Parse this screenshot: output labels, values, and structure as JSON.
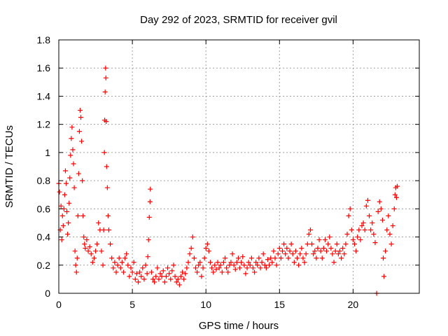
{
  "chart_data": {
    "type": "scatter",
    "title": "Day 292 of 2023, SRMTID for receiver gvil",
    "xlabel": "GPS time / hours",
    "ylabel": "SRMTID / TECUs",
    "xlim": [
      0,
      24.5
    ],
    "ylim": [
      0,
      1.8
    ],
    "xticks": [
      0,
      5,
      10,
      15,
      20
    ],
    "xtick_labels": [
      "0",
      "5",
      "10",
      "15",
      "20"
    ],
    "yticks": [
      0,
      0.2,
      0.4,
      0.6,
      0.8,
      1,
      1.2,
      1.4,
      1.6,
      1.8
    ],
    "ytick_labels": [
      "0",
      "0.2",
      "0.4",
      "0.6",
      "0.8",
      "1",
      "1.2",
      "1.4",
      "1.6",
      "1.8"
    ],
    "grid": true,
    "marker": "+",
    "color": "#ff0000",
    "series": [
      {
        "name": "SRMTID",
        "points": [
          [
            0.0,
            0.78
          ],
          [
            0.05,
            0.72
          ],
          [
            0.1,
            0.45
          ],
          [
            0.15,
            0.62
          ],
          [
            0.2,
            0.38
          ],
          [
            0.25,
            0.55
          ],
          [
            0.3,
            0.48
          ],
          [
            0.35,
            0.6
          ],
          [
            0.4,
            0.7
          ],
          [
            0.45,
            0.87
          ],
          [
            0.5,
            0.78
          ],
          [
            0.55,
            0.58
          ],
          [
            0.6,
            0.42
          ],
          [
            0.65,
            0.5
          ],
          [
            0.7,
            0.64
          ],
          [
            0.75,
            0.82
          ],
          [
            0.8,
            0.98
          ],
          [
            0.85,
            1.1
          ],
          [
            0.9,
            1.18
          ],
          [
            0.95,
            1.02
          ],
          [
            1.0,
            0.92
          ],
          [
            1.05,
            0.75
          ],
          [
            1.1,
            0.3
          ],
          [
            1.15,
            0.2
          ],
          [
            1.2,
            0.15
          ],
          [
            1.25,
            0.25
          ],
          [
            1.3,
            0.55
          ],
          [
            1.35,
            0.85
          ],
          [
            1.4,
            1.15
          ],
          [
            1.45,
            1.3
          ],
          [
            1.5,
            1.25
          ],
          [
            1.55,
            1.08
          ],
          [
            1.6,
            0.8
          ],
          [
            1.65,
            0.55
          ],
          [
            1.7,
            0.4
          ],
          [
            1.75,
            0.35
          ],
          [
            1.8,
            0.32
          ],
          [
            1.9,
            0.38
          ],
          [
            2.0,
            0.3
          ],
          [
            2.1,
            0.33
          ],
          [
            2.2,
            0.28
          ],
          [
            2.3,
            0.22
          ],
          [
            2.4,
            0.25
          ],
          [
            2.5,
            0.3
          ],
          [
            2.6,
            0.35
          ],
          [
            2.7,
            0.5
          ],
          [
            2.8,
            0.45
          ],
          [
            2.9,
            0.3
          ],
          [
            3.0,
            0.2
          ],
          [
            3.05,
            0.45
          ],
          [
            3.1,
            1.0
          ],
          [
            3.12,
            1.23
          ],
          [
            3.15,
            1.43
          ],
          [
            3.18,
            1.6
          ],
          [
            3.2,
            1.53
          ],
          [
            3.22,
            1.22
          ],
          [
            3.25,
            0.9
          ],
          [
            3.3,
            0.75
          ],
          [
            3.35,
            0.55
          ],
          [
            3.4,
            0.45
          ],
          [
            3.5,
            0.35
          ],
          [
            3.6,
            0.25
          ],
          [
            3.7,
            0.18
          ],
          [
            3.8,
            0.22
          ],
          [
            3.9,
            0.15
          ],
          [
            4.0,
            0.2
          ],
          [
            4.1,
            0.25
          ],
          [
            4.2,
            0.18
          ],
          [
            4.3,
            0.22
          ],
          [
            4.4,
            0.15
          ],
          [
            4.5,
            0.25
          ],
          [
            4.6,
            0.28
          ],
          [
            4.7,
            0.2
          ],
          [
            4.8,
            0.12
          ],
          [
            4.9,
            0.18
          ],
          [
            5.0,
            0.15
          ],
          [
            5.1,
            0.22
          ],
          [
            5.2,
            0.1
          ],
          [
            5.3,
            0.14
          ],
          [
            5.4,
            0.08
          ],
          [
            5.5,
            0.15
          ],
          [
            5.6,
            0.12
          ],
          [
            5.7,
            0.18
          ],
          [
            5.8,
            0.1
          ],
          [
            5.9,
            0.2
          ],
          [
            6.0,
            0.14
          ],
          [
            6.05,
            0.26
          ],
          [
            6.1,
            0.38
          ],
          [
            6.15,
            0.54
          ],
          [
            6.2,
            0.65
          ],
          [
            6.22,
            0.74
          ],
          [
            6.3,
            0.15
          ],
          [
            6.4,
            0.1
          ],
          [
            6.5,
            0.08
          ],
          [
            6.6,
            0.12
          ],
          [
            6.7,
            0.18
          ],
          [
            6.8,
            0.1
          ],
          [
            6.9,
            0.14
          ],
          [
            7.0,
            0.12
          ],
          [
            7.1,
            0.16
          ],
          [
            7.2,
            0.08
          ],
          [
            7.3,
            0.12
          ],
          [
            7.4,
            0.18
          ],
          [
            7.5,
            0.14
          ],
          [
            7.6,
            0.1
          ],
          [
            7.7,
            0.16
          ],
          [
            7.8,
            0.2
          ],
          [
            7.9,
            0.12
          ],
          [
            8.0,
            0.08
          ],
          [
            8.1,
            0.1
          ],
          [
            8.2,
            0.06
          ],
          [
            8.3,
            0.12
          ],
          [
            8.4,
            0.15
          ],
          [
            8.5,
            0.1
          ],
          [
            8.6,
            0.14
          ],
          [
            8.7,
            0.18
          ],
          [
            8.8,
            0.22
          ],
          [
            8.9,
            0.28
          ],
          [
            9.0,
            0.32
          ],
          [
            9.1,
            0.4
          ],
          [
            9.2,
            0.25
          ],
          [
            9.3,
            0.18
          ],
          [
            9.4,
            0.15
          ],
          [
            9.5,
            0.2
          ],
          [
            9.6,
            0.22
          ],
          [
            9.7,
            0.12
          ],
          [
            9.8,
            0.18
          ],
          [
            9.9,
            0.25
          ],
          [
            10.0,
            0.32
          ],
          [
            10.1,
            0.35
          ],
          [
            10.2,
            0.3
          ],
          [
            10.3,
            0.22
          ],
          [
            10.4,
            0.18
          ],
          [
            10.5,
            0.15
          ],
          [
            10.6,
            0.2
          ],
          [
            10.7,
            0.17
          ],
          [
            10.8,
            0.22
          ],
          [
            10.9,
            0.18
          ],
          [
            11.0,
            0.2
          ],
          [
            11.1,
            0.15
          ],
          [
            11.2,
            0.22
          ],
          [
            11.3,
            0.25
          ],
          [
            11.4,
            0.18
          ],
          [
            11.5,
            0.15
          ],
          [
            11.6,
            0.2
          ],
          [
            11.7,
            0.22
          ],
          [
            11.8,
            0.28
          ],
          [
            11.9,
            0.2
          ],
          [
            12.0,
            0.17
          ],
          [
            12.1,
            0.22
          ],
          [
            12.2,
            0.25
          ],
          [
            12.3,
            0.18
          ],
          [
            12.4,
            0.22
          ],
          [
            12.5,
            0.26
          ],
          [
            12.6,
            0.2
          ],
          [
            12.7,
            0.14
          ],
          [
            12.8,
            0.18
          ],
          [
            12.9,
            0.22
          ],
          [
            13.0,
            0.2
          ],
          [
            13.1,
            0.25
          ],
          [
            13.2,
            0.18
          ],
          [
            13.3,
            0.15
          ],
          [
            13.4,
            0.22
          ],
          [
            13.5,
            0.2
          ],
          [
            13.6,
            0.25
          ],
          [
            13.7,
            0.18
          ],
          [
            13.8,
            0.22
          ],
          [
            13.9,
            0.28
          ],
          [
            14.0,
            0.2
          ],
          [
            14.1,
            0.18
          ],
          [
            14.2,
            0.24
          ],
          [
            14.3,
            0.2
          ],
          [
            14.4,
            0.25
          ],
          [
            14.5,
            0.22
          ],
          [
            14.6,
            0.3
          ],
          [
            14.7,
            0.25
          ],
          [
            14.8,
            0.2
          ],
          [
            14.9,
            0.28
          ],
          [
            15.0,
            0.32
          ],
          [
            15.1,
            0.25
          ],
          [
            15.2,
            0.3
          ],
          [
            15.3,
            0.35
          ],
          [
            15.4,
            0.28
          ],
          [
            15.5,
            0.32
          ],
          [
            15.6,
            0.25
          ],
          [
            15.7,
            0.3
          ],
          [
            15.8,
            0.35
          ],
          [
            15.9,
            0.28
          ],
          [
            16.0,
            0.22
          ],
          [
            16.1,
            0.3
          ],
          [
            16.2,
            0.25
          ],
          [
            16.3,
            0.2
          ],
          [
            16.4,
            0.28
          ],
          [
            16.5,
            0.32
          ],
          [
            16.6,
            0.25
          ],
          [
            16.7,
            0.22
          ],
          [
            16.8,
            0.28
          ],
          [
            16.9,
            0.35
          ],
          [
            17.0,
            0.42
          ],
          [
            17.1,
            0.45
          ],
          [
            17.2,
            0.35
          ],
          [
            17.3,
            0.28
          ],
          [
            17.4,
            0.3
          ],
          [
            17.5,
            0.25
          ],
          [
            17.6,
            0.32
          ],
          [
            17.7,
            0.38
          ],
          [
            17.8,
            0.3
          ],
          [
            17.9,
            0.25
          ],
          [
            18.0,
            0.32
          ],
          [
            18.1,
            0.38
          ],
          [
            18.2,
            0.3
          ],
          [
            18.3,
            0.35
          ],
          [
            18.4,
            0.4
          ],
          [
            18.5,
            0.32
          ],
          [
            18.6,
            0.28
          ],
          [
            18.7,
            0.22
          ],
          [
            18.8,
            0.3
          ],
          [
            18.9,
            0.35
          ],
          [
            19.0,
            0.28
          ],
          [
            19.1,
            0.3
          ],
          [
            19.2,
            0.25
          ],
          [
            19.3,
            0.32
          ],
          [
            19.4,
            0.28
          ],
          [
            19.5,
            0.35
          ],
          [
            19.6,
            0.42
          ],
          [
            19.7,
            0.55
          ],
          [
            19.8,
            0.6
          ],
          [
            19.9,
            0.45
          ],
          [
            20.0,
            0.38
          ],
          [
            20.1,
            0.35
          ],
          [
            20.2,
            0.3
          ],
          [
            20.3,
            0.4
          ],
          [
            20.4,
            0.45
          ],
          [
            20.5,
            0.38
          ],
          [
            20.6,
            0.48
          ],
          [
            20.7,
            0.5
          ],
          [
            20.8,
            0.45
          ],
          [
            20.9,
            0.62
          ],
          [
            21.0,
            0.66
          ],
          [
            21.1,
            0.55
          ],
          [
            21.2,
            0.45
          ],
          [
            21.3,
            0.5
          ],
          [
            21.4,
            0.42
          ],
          [
            21.5,
            0.36
          ],
          [
            21.6,
            0.0
          ],
          [
            21.7,
            0.58
          ],
          [
            21.8,
            0.65
          ],
          [
            21.9,
            0.6
          ],
          [
            22.0,
            0.52
          ],
          [
            22.05,
            0.25
          ],
          [
            22.1,
            0.12
          ],
          [
            22.2,
            0.3
          ],
          [
            22.3,
            0.45
          ],
          [
            22.4,
            0.55
          ],
          [
            22.5,
            0.42
          ],
          [
            22.6,
            0.35
          ],
          [
            22.7,
            0.48
          ],
          [
            22.8,
            0.6
          ],
          [
            22.85,
            0.7
          ],
          [
            22.9,
            0.75
          ],
          [
            22.95,
            0.68
          ],
          [
            23.0,
            0.76
          ]
        ]
      }
    ]
  }
}
